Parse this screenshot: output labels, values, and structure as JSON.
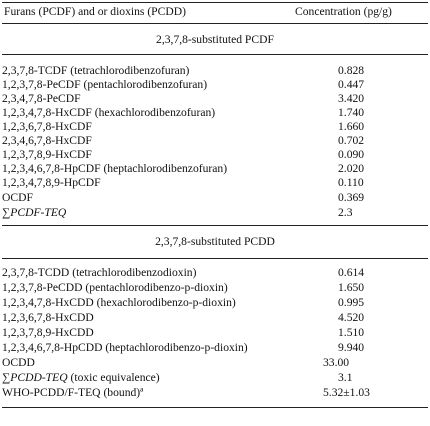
{
  "header": {
    "col1": "Furans (PCDF) and or dioxins (PCDD)",
    "col2": "Concentration (pg/g)"
  },
  "sections": [
    {
      "title": "2,3,7,8-substituted PCDF",
      "rows": [
        {
          "name": "2,3,7,8-TCDF (tetrachlorodibenzofuran)",
          "value": "0.828"
        },
        {
          "name": "1,2,3,7,8-PeCDF (pentachlorodibenzofuran)",
          "value": "0.447"
        },
        {
          "name": "2,3,4,7,8-PeCDF",
          "value": "3.420"
        },
        {
          "name": "1,2,3,4,7,8-HxCDF (hexachlorodibenzofuran)",
          "value": "1.740"
        },
        {
          "name": "1,2,3,6,7,8-HxCDF",
          "value": "1.660"
        },
        {
          "name": "2,3,4,6,7,8-HxCDF",
          "value": "0.702"
        },
        {
          "name": "1,2,3,7,8,9-HxCDF",
          "value": "0.090"
        },
        {
          "name": "1,2,3,4,6,7,8-HpCDF (heptachlorodibenzofuran)",
          "value": "2.020"
        },
        {
          "name": "1,2,3,4,7,8,9-HpCDF",
          "value": "0.110"
        },
        {
          "name": "OCDF",
          "value": "0.369"
        },
        {
          "name": "∑PCDF-TEQ",
          "value": "2.3"
        }
      ]
    },
    {
      "title": "2,3,7,8-substituted PCDD",
      "rows": [
        {
          "name": "2,3,7,8-TCDD (tetrachlorodibenzodioxin)",
          "value": "0.614"
        },
        {
          "name": "1,2,3,7,8-PeCDD (pentachlorodibenzo-p-dioxin)",
          "value": "1.650"
        },
        {
          "name": "1,2,3,4,7,8-HxCDD (hexachlorodibenzo-p-dioxin)",
          "value": "0.995"
        },
        {
          "name": "1,2,3,6,7,8-HxCDD",
          "value": "4.520"
        },
        {
          "name": "1,2,3,7,8,9-HxCDD",
          "value": "1.510"
        },
        {
          "name": "1,2,3,4,6,7,8-HpCDD (heptachlorodibenzo-p-dioxin)",
          "value": "9.940"
        },
        {
          "name": "OCDD",
          "value": "33.00"
        },
        {
          "name_italic": "∑PCDD-TEQ",
          "name_rest": " (toxic equivalence)",
          "value": "3.1"
        },
        {
          "name": "WHO-PCDD/F-TEQ (bound)ª",
          "value": "5.32±1.03"
        }
      ]
    }
  ]
}
